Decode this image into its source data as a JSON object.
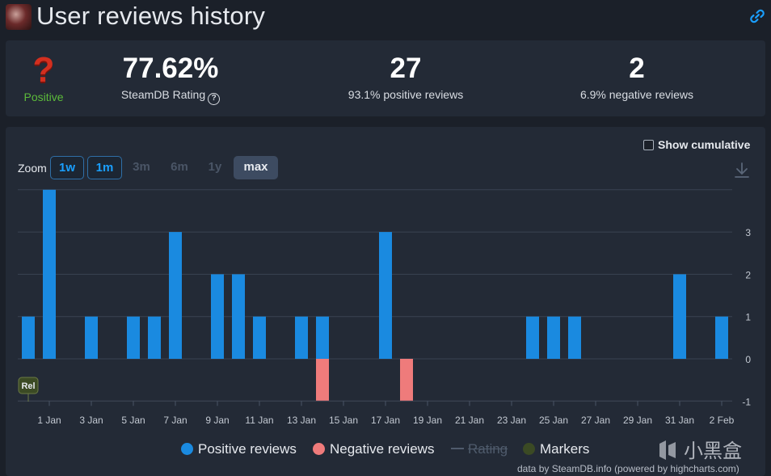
{
  "header": {
    "title": "User reviews history"
  },
  "summary": {
    "rating_label": "Positive",
    "rating_value": "77.62%",
    "rating_caption": "SteamDB Rating",
    "positive_count": "27",
    "positive_caption": "93.1% positive reviews",
    "negative_count": "2",
    "negative_caption": "6.9% negative reviews"
  },
  "controls": {
    "cumulative_label": "Show cumulative",
    "zoom_label": "Zoom",
    "zoom_options": [
      "1w",
      "1m",
      "3m",
      "6m",
      "1y",
      "max"
    ]
  },
  "legend": {
    "positive": "Positive reviews",
    "negative": "Negative reviews",
    "rating": "Rating",
    "markers": "Markers"
  },
  "colors": {
    "positive": "#1a8ae0",
    "negative": "#ef7b7b",
    "markers": "#3b4a24",
    "background": "#232a36"
  },
  "credit": "data by SteamDB.info (powered by highcharts.com)",
  "watermark": "小黑盒",
  "chart_data": {
    "type": "bar",
    "title": "User reviews history",
    "x": [
      "Dec 31",
      "Jan 1",
      "Jan 2",
      "Jan 3",
      "Jan 4",
      "Jan 5",
      "Jan 6",
      "Jan 7",
      "Jan 8",
      "Jan 9",
      "Jan 10",
      "Jan 11",
      "Jan 12",
      "Jan 13",
      "Jan 14",
      "Jan 15",
      "Jan 16",
      "Jan 17",
      "Jan 18",
      "Jan 19",
      "Jan 20",
      "Jan 21",
      "Jan 22",
      "Jan 23",
      "Jan 24",
      "Jan 25",
      "Jan 26",
      "Jan 27",
      "Jan 28",
      "Jan 29",
      "Jan 30",
      "Jan 31",
      "Feb 1",
      "Feb 2"
    ],
    "series": [
      {
        "name": "Positive reviews",
        "values": [
          1,
          4,
          0,
          1,
          0,
          1,
          1,
          3,
          0,
          2,
          2,
          1,
          0,
          1,
          1,
          0,
          0,
          3,
          0,
          0,
          0,
          0,
          0,
          0,
          1,
          1,
          1,
          0,
          0,
          0,
          0,
          2,
          0,
          1
        ]
      },
      {
        "name": "Negative reviews",
        "values": [
          0,
          0,
          0,
          0,
          0,
          0,
          0,
          0,
          0,
          0,
          0,
          0,
          0,
          0,
          -1,
          0,
          0,
          0,
          -1,
          0,
          0,
          0,
          0,
          0,
          0,
          0,
          0,
          0,
          0,
          0,
          0,
          0,
          0,
          0
        ]
      }
    ],
    "xtick_labels": [
      "1 Jan",
      "3 Jan",
      "5 Jan",
      "7 Jan",
      "9 Jan",
      "11 Jan",
      "13 Jan",
      "15 Jan",
      "17 Jan",
      "19 Jan",
      "21 Jan",
      "23 Jan",
      "25 Jan",
      "27 Jan",
      "29 Jan",
      "31 Jan",
      "2 Feb"
    ],
    "ytick_labels": [
      "3",
      "2",
      "1",
      "0",
      "-1"
    ],
    "ylim": [
      -1,
      4
    ],
    "markers": [
      {
        "x": "Dec 31",
        "label": "Rel"
      }
    ],
    "legend_position": "bottom"
  }
}
